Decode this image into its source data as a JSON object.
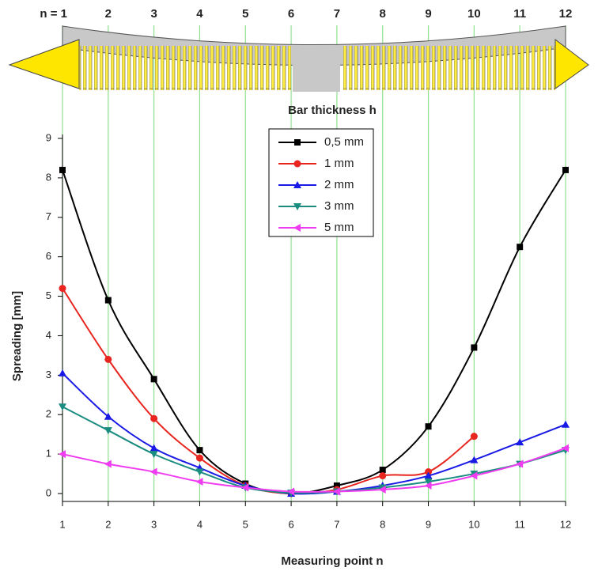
{
  "chart_data": {
    "type": "line",
    "top_labels": [
      "n = 1",
      "2",
      "3",
      "4",
      "5",
      "6",
      "7",
      "8",
      "9",
      "10",
      "11",
      "12"
    ],
    "legend_title": "Bar thickness h",
    "x_label": "Measuring point n",
    "y_label": "Spreading  [mm]",
    "x": [
      1,
      2,
      3,
      4,
      5,
      6,
      7,
      8,
      9,
      10,
      11,
      12
    ],
    "xlim": [
      1,
      12
    ],
    "xticks": [
      1,
      2,
      3,
      4,
      5,
      6,
      7,
      8,
      9,
      10,
      11,
      12
    ],
    "ylim": [
      0,
      9
    ],
    "yticks": [
      0,
      1,
      2,
      3,
      4,
      5,
      6,
      7,
      8,
      9
    ],
    "grid": true,
    "grid_color": "#8fe08f",
    "series": [
      {
        "name": "0,5 mm",
        "color": "#000000",
        "marker": "square",
        "values": [
          8.2,
          4.9,
          2.9,
          1.1,
          0.25,
          0,
          0.2,
          0.6,
          1.7,
          3.7,
          6.25,
          8.2
        ]
      },
      {
        "name": "1 mm",
        "color": "#e8251f",
        "marker": "circle",
        "values": [
          5.2,
          3.4,
          1.9,
          0.9,
          0.2,
          0,
          0.1,
          0.45,
          0.55,
          1.45,
          null,
          null
        ]
      },
      {
        "name": "2 mm",
        "color": "#1a1ae6",
        "marker": "triangle-up",
        "values": [
          3.05,
          1.95,
          1.15,
          0.65,
          0.2,
          0,
          0.05,
          0.2,
          0.45,
          0.85,
          1.3,
          1.75
        ]
      },
      {
        "name": "3 mm",
        "color": "#1a8c80",
        "marker": "triangle-down",
        "values": [
          2.2,
          1.6,
          1.0,
          0.55,
          0.15,
          0.02,
          0.05,
          0.15,
          0.3,
          0.5,
          0.75,
          1.1
        ]
      },
      {
        "name": "5 mm",
        "color": "#f03cf0",
        "marker": "triangle-left",
        "values": [
          1.0,
          0.75,
          0.55,
          0.3,
          0.15,
          0.05,
          0.05,
          0.1,
          0.2,
          0.45,
          0.75,
          1.15
        ]
      }
    ]
  }
}
